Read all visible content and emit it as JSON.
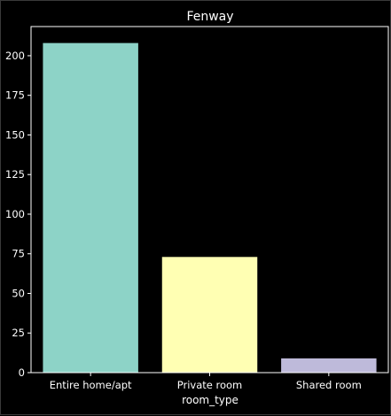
{
  "chart_data": {
    "type": "bar",
    "title": "Fenway",
    "xlabel": "room_type",
    "ylabel": "",
    "categories": [
      "Entire home/apt",
      "Private room",
      "Shared room"
    ],
    "values": [
      208,
      73,
      9
    ],
    "colors": [
      "#8dd3c7",
      "#ffffb3",
      "#bebada"
    ],
    "yticks": [
      0,
      25,
      50,
      75,
      100,
      125,
      150,
      175,
      200
    ],
    "ylim": [
      0,
      218.4
    ],
    "background": "#000000",
    "text_color": "#ffffff",
    "grid": false,
    "legend": "none"
  }
}
